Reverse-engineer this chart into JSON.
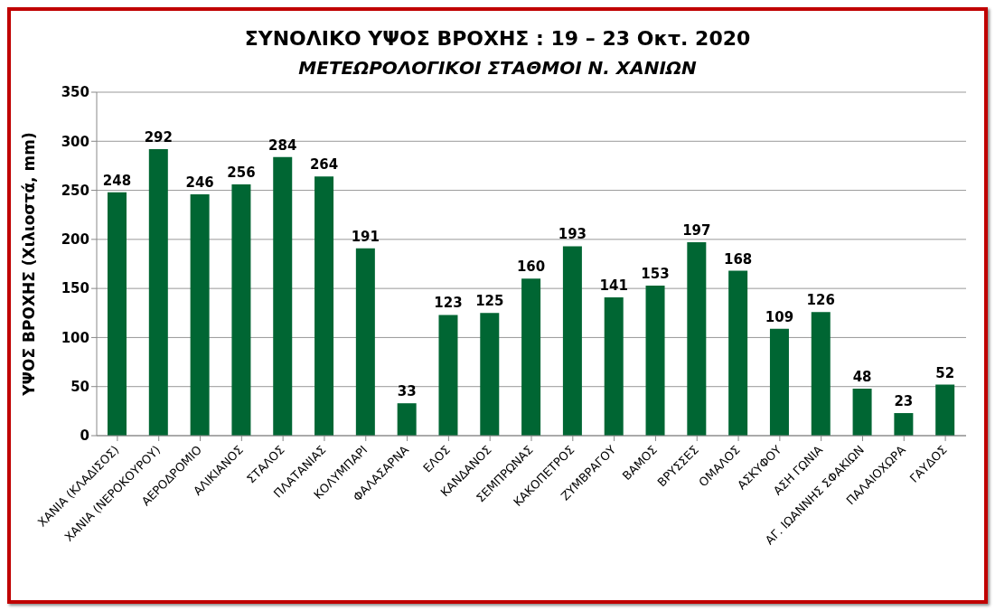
{
  "chart_data": {
    "type": "bar",
    "title": "ΣΥΝΟΛΙΚΟ ΥΨΟΣ ΒΡΟΧΗΣ  :  19 – 23 Οκτ. 2020",
    "subtitle": "ΜΕΤΕΩΡΟΛΟΓΙΚΟΙ ΣΤΑΘΜΟΙ  Ν. ΧΑΝΙΩΝ",
    "ylabel": "ΥΨΟΣ ΒΡΟΧΗΣ  (Χιλιοστά, mm)",
    "categories": [
      "ΧΑΝΙΑ (ΚΛΑΔΙΣΟΣ)",
      "ΧΑΝΙΑ (ΝΕΡΟΚΟΥΡΟΥ)",
      "ΑΕΡΟΔΡΟΜΙΟ",
      "ΑΛΙΚΙΑΝΟΣ",
      "ΣΤΑΛΟΣ",
      "ΠΛΑΤΑΝΙΑΣ",
      "ΚΟΛΥΜΠΑΡΙ",
      "ΦΑΛΑΣΑΡΝΑ",
      "ΕΛΟΣ",
      "ΚΑΝΔΑΝΟΣ",
      "ΣΕΜΠΡΩΝΑΣ",
      "ΚΑΚΟΠΕΤΡΟΣ",
      "ΖΥΜΒΡΑΓΟΥ",
      "ΒΑΜΟΣ",
      "ΒΡΥΣΣΕΣ",
      "ΟΜΑΛΟΣ",
      "ΑΣΚΥΦΟΥ",
      "ΑΣΗ ΓΩΝΙΑ",
      "ΑΓ. ΙΩΑΝΝΗΣ ΣΦΑΚΙΩΝ",
      "ΠΑΛΑΙΟΧΩΡΑ",
      "ΓΑΥΔΟΣ"
    ],
    "values": [
      248,
      292,
      246,
      256,
      284,
      264,
      191,
      33,
      123,
      125,
      160,
      193,
      141,
      153,
      197,
      168,
      109,
      126,
      48,
      23,
      52
    ],
    "color": "#006633",
    "ylim": [
      0,
      350
    ],
    "yticks": [
      0,
      50,
      100,
      150,
      200,
      250,
      300,
      350
    ],
    "grid": "y",
    "data_labels": true
  }
}
